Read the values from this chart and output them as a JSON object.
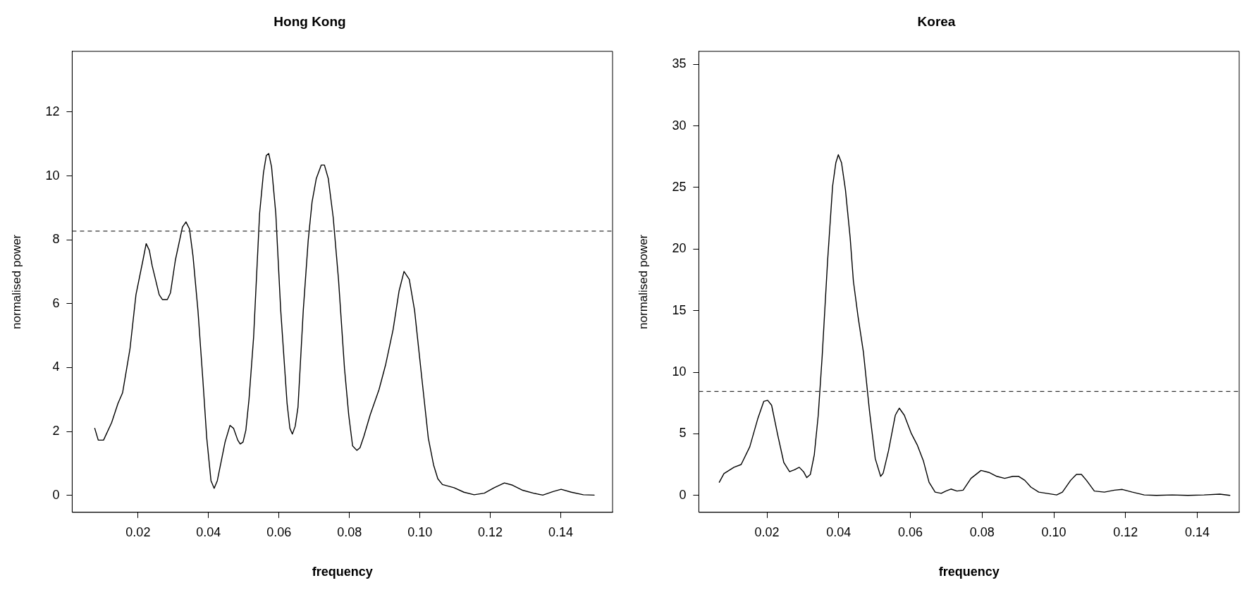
{
  "chart_data": [
    {
      "type": "line",
      "title": "Hong Kong",
      "xlabel": "frequency",
      "ylabel": "normalised power",
      "xlim": [
        0.0013,
        0.1547
      ],
      "xticks": [
        {
          "value": 0.02,
          "label": "0.02"
        },
        {
          "value": 0.04,
          "label": "0.04"
        },
        {
          "value": 0.06,
          "label": "0.06"
        },
        {
          "value": 0.08,
          "label": "0.08"
        },
        {
          "value": 0.1,
          "label": "0.10"
        },
        {
          "value": 0.12,
          "label": "0.12"
        },
        {
          "value": 0.14,
          "label": "0.14"
        }
      ],
      "ylim": [
        -0.53,
        13.9
      ],
      "yticks": [
        0,
        2,
        4,
        6,
        8,
        10,
        12
      ],
      "grid": false,
      "legend": false,
      "marker": "none",
      "line_style": "solid",
      "ref_lines": [
        {
          "axis": "y",
          "value": 8.27,
          "line_style": "dashed",
          "color": "#333333"
        }
      ],
      "series": [
        {
          "color": "#000000",
          "x": [
            0.0077,
            0.0087,
            0.0102,
            0.0125,
            0.0143,
            0.0156,
            0.0177,
            0.0194,
            0.0214,
            0.0223,
            0.0232,
            0.024,
            0.026,
            0.0269,
            0.0283,
            0.0292,
            0.0306,
            0.0326,
            0.0336,
            0.0346,
            0.0356,
            0.037,
            0.0384,
            0.0395,
            0.0407,
            0.0416,
            0.0425,
            0.0447,
            0.0461,
            0.0471,
            0.0483,
            0.049,
            0.0498,
            0.0506,
            0.0515,
            0.0528,
            0.0545,
            0.0556,
            0.0564,
            0.0571,
            0.0579,
            0.0591,
            0.0605,
            0.0623,
            0.0631,
            0.0638,
            0.0646,
            0.0654,
            0.0669,
            0.0683,
            0.0694,
            0.0706,
            0.072,
            0.0729,
            0.074,
            0.0754,
            0.0769,
            0.0786,
            0.0798,
            0.0809,
            0.0821,
            0.083,
            0.0841,
            0.0859,
            0.0884,
            0.0903,
            0.0924,
            0.0941,
            0.0955,
            0.097,
            0.0985,
            0.1005,
            0.1024,
            0.1039,
            0.1051,
            0.1064,
            0.1097,
            0.1125,
            0.1154,
            0.1183,
            0.1211,
            0.124,
            0.1263,
            0.1292,
            0.1326,
            0.1349,
            0.1378,
            0.1401,
            0.143,
            0.1464,
            0.1495
          ],
          "values": [
            2.1,
            1.73,
            1.73,
            2.28,
            2.88,
            3.21,
            4.58,
            6.28,
            7.37,
            7.88,
            7.67,
            7.19,
            6.28,
            6.13,
            6.13,
            6.34,
            7.37,
            8.4,
            8.56,
            8.34,
            7.49,
            5.79,
            3.61,
            1.79,
            0.46,
            0.22,
            0.46,
            1.67,
            2.19,
            2.1,
            1.73,
            1.61,
            1.67,
            2.04,
            3.01,
            4.95,
            8.82,
            10.1,
            10.64,
            10.7,
            10.28,
            8.82,
            5.79,
            2.88,
            2.1,
            1.92,
            2.16,
            2.76,
            5.79,
            7.98,
            9.19,
            9.92,
            10.34,
            10.34,
            9.92,
            8.7,
            6.76,
            3.98,
            2.52,
            1.55,
            1.41,
            1.49,
            1.85,
            2.52,
            3.31,
            4.1,
            5.19,
            6.4,
            7.01,
            6.76,
            5.79,
            3.73,
            1.79,
            0.95,
            0.52,
            0.34,
            0.24,
            0.1,
            0.02,
            0.07,
            0.24,
            0.39,
            0.32,
            0.16,
            0.06,
            0.01,
            0.12,
            0.19,
            0.1,
            0.02,
            0.01
          ]
        }
      ]
    },
    {
      "type": "line",
      "title": "Korea",
      "xlabel": "frequency",
      "ylabel": "normalised power",
      "xlim": [
        0.001,
        0.1517
      ],
      "xticks": [
        {
          "value": 0.02,
          "label": "0.02"
        },
        {
          "value": 0.04,
          "label": "0.04"
        },
        {
          "value": 0.06,
          "label": "0.06"
        },
        {
          "value": 0.08,
          "label": "0.08"
        },
        {
          "value": 0.1,
          "label": "0.10"
        },
        {
          "value": 0.12,
          "label": "0.12"
        },
        {
          "value": 0.14,
          "label": "0.14"
        }
      ],
      "ylim": [
        -1.38,
        36.06
      ],
      "yticks": [
        0,
        5,
        10,
        15,
        20,
        25,
        30,
        35
      ],
      "grid": false,
      "legend": false,
      "marker": "none",
      "line_style": "solid",
      "ref_lines": [
        {
          "axis": "y",
          "value": 8.43,
          "line_style": "dashed",
          "color": "#333333"
        }
      ],
      "series": [
        {
          "color": "#000000",
          "x": [
            0.0067,
            0.008,
            0.0108,
            0.0128,
            0.0152,
            0.0174,
            0.0191,
            0.0202,
            0.0213,
            0.023,
            0.0247,
            0.0263,
            0.0277,
            0.029,
            0.0302,
            0.0311,
            0.0321,
            0.0332,
            0.0343,
            0.0354,
            0.0369,
            0.0383,
            0.0392,
            0.0399,
            0.0408,
            0.0419,
            0.0432,
            0.0441,
            0.0454,
            0.0469,
            0.0486,
            0.0502,
            0.0517,
            0.0524,
            0.0539,
            0.0558,
            0.0569,
            0.0583,
            0.0602,
            0.0619,
            0.0636,
            0.0652,
            0.0669,
            0.0686,
            0.0699,
            0.0713,
            0.073,
            0.0747,
            0.0769,
            0.0797,
            0.0819,
            0.0841,
            0.0863,
            0.0886,
            0.0902,
            0.0919,
            0.0936,
            0.0958,
            0.098,
            0.1008,
            0.1024,
            0.1047,
            0.1063,
            0.1077,
            0.1091,
            0.1113,
            0.1141,
            0.1169,
            0.1191,
            0.1219,
            0.1252,
            0.1286,
            0.133,
            0.1374,
            0.1419,
            0.1463,
            0.1491
          ],
          "values": [
            1.06,
            1.76,
            2.28,
            2.5,
            3.94,
            6.19,
            7.63,
            7.72,
            7.31,
            4.9,
            2.66,
            1.92,
            2.08,
            2.28,
            1.92,
            1.44,
            1.7,
            3.3,
            6.51,
            11.31,
            19.0,
            25.1,
            27.0,
            27.66,
            27.0,
            24.78,
            20.93,
            17.4,
            14.52,
            11.63,
            6.83,
            2.98,
            1.54,
            1.79,
            3.62,
            6.51,
            7.08,
            6.51,
            5.06,
            4.1,
            2.82,
            1.06,
            0.26,
            0.16,
            0.35,
            0.51,
            0.35,
            0.42,
            1.38,
            2.02,
            1.86,
            1.54,
            1.38,
            1.54,
            1.54,
            1.22,
            0.67,
            0.26,
            0.16,
            0.03,
            0.26,
            1.22,
            1.7,
            1.7,
            1.22,
            0.35,
            0.26,
            0.42,
            0.48,
            0.26,
            0.03,
            0,
            0.03,
            0,
            0.03,
            0.1,
            0
          ]
        }
      ]
    }
  ]
}
